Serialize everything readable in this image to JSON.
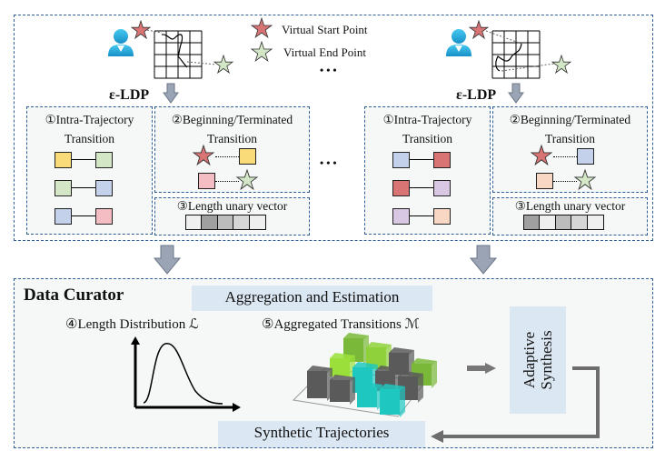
{
  "legend": {
    "start": "Virtual Start Point",
    "end": "Virtual End Point",
    "ellipsis": "• • •"
  },
  "clients": [
    {
      "ldp": "ε-LDP",
      "intra_title": "①Intra-Trajectory",
      "intra_sub": "Transition",
      "bt_title": "②Beginning/Terminated",
      "bt_sub": "Transition",
      "len_title": "③Length unary vector",
      "pairs": [
        [
          "#f9db7a",
          "#d3e7c6"
        ],
        [
          "#d3e7c6",
          "#c3d1ea"
        ],
        [
          "#c3d1ea",
          "#f4bcc3"
        ]
      ],
      "bt_squares": [
        "#f9db7a",
        "#f4bcc3"
      ],
      "vector": [
        "#efefef",
        "#a0a0a0",
        "#bdbdbd",
        "#d6d6d6",
        "#efefef"
      ]
    },
    {
      "ldp": "ε-LDP",
      "intra_title": "①Intra-Trajectory",
      "intra_sub": "Transition",
      "bt_title": "②Beginning/Terminated",
      "bt_sub": "Transition",
      "len_title": "③Length unary vector",
      "pairs": [
        [
          "#c3d1ea",
          "#d97474"
        ],
        [
          "#d97474",
          "#d8c8e3"
        ],
        [
          "#d8c8e3",
          "#f8d8c4"
        ]
      ],
      "bt_squares": [
        "#c3d1ea",
        "#f8d8c4"
      ],
      "vector": [
        "#a0a0a0",
        "#efefef",
        "#bdbdbd",
        "#d6d6d6",
        "#efefef"
      ]
    }
  ],
  "curator": {
    "title": "Data Curator",
    "aggregation": "Aggregation and Estimation",
    "length_dist": "④Length Distribution ℒ",
    "agg_trans": "⑤Aggregated Transitions ℳ",
    "adaptive": "Adaptive Synthesis",
    "synthetic": "Synthetic Trajectories"
  },
  "colors": {
    "border": "#2f5f96",
    "start_star": "#d97474",
    "end_star": "#d3e7c6",
    "arrow": "#8d96a8",
    "highlight": "#dbe7f2"
  }
}
